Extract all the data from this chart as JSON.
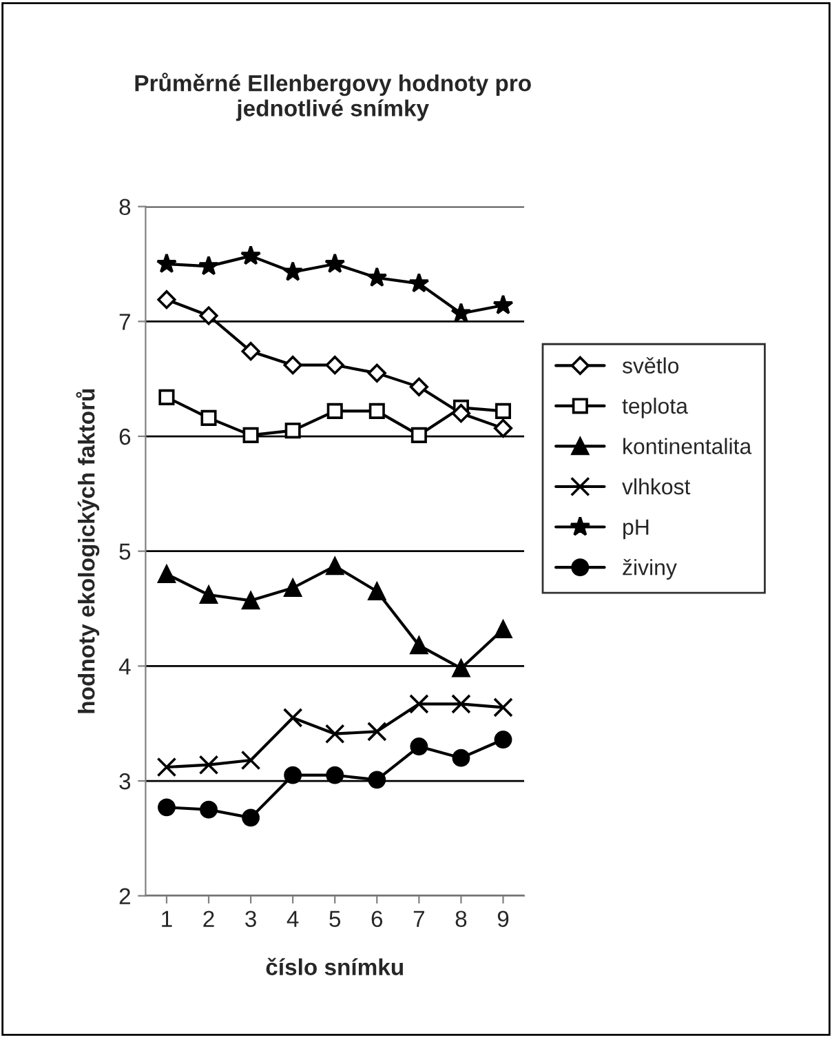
{
  "chart_data": {
    "type": "line",
    "title": "Průměrné Ellenbergovy hodnoty pro\njednotlivé snímky",
    "xlabel": "číslo snímku",
    "ylabel": "hodnoty ekologických faktorů",
    "categories": [
      "1",
      "2",
      "3",
      "4",
      "5",
      "6",
      "7",
      "8",
      "9"
    ],
    "ylim": [
      2,
      8
    ],
    "yticks": [
      2,
      3,
      4,
      5,
      6,
      7,
      8
    ],
    "grid": "y",
    "legend": "right",
    "series": [
      {
        "name": "světlo",
        "color": "#000000",
        "marker": "diamond",
        "values": [
          7.19,
          7.05,
          6.74,
          6.62,
          6.62,
          6.55,
          6.43,
          6.2,
          6.07
        ]
      },
      {
        "name": "teplota",
        "color": "#000000",
        "marker": "square",
        "values": [
          6.34,
          6.16,
          6.01,
          6.05,
          6.22,
          6.22,
          6.01,
          6.25,
          6.22
        ]
      },
      {
        "name": "kontinentalita",
        "color": "#000000",
        "marker": "triangle",
        "values": [
          4.8,
          4.62,
          4.57,
          4.68,
          4.87,
          4.65,
          4.18,
          3.98,
          4.32
        ]
      },
      {
        "name": "vlhkost",
        "color": "#000000",
        "marker": "cross",
        "values": [
          3.12,
          3.14,
          3.18,
          3.55,
          3.41,
          3.43,
          3.67,
          3.67,
          3.64
        ]
      },
      {
        "name": "pH",
        "color": "#000000",
        "marker": "star",
        "values": [
          7.5,
          7.48,
          7.57,
          7.43,
          7.5,
          7.38,
          7.33,
          7.07,
          7.14
        ]
      },
      {
        "name": "živiny",
        "color": "#000000",
        "marker": "circle",
        "values": [
          2.77,
          2.75,
          2.68,
          3.05,
          3.05,
          3.01,
          3.3,
          3.2,
          3.36
        ]
      }
    ]
  }
}
